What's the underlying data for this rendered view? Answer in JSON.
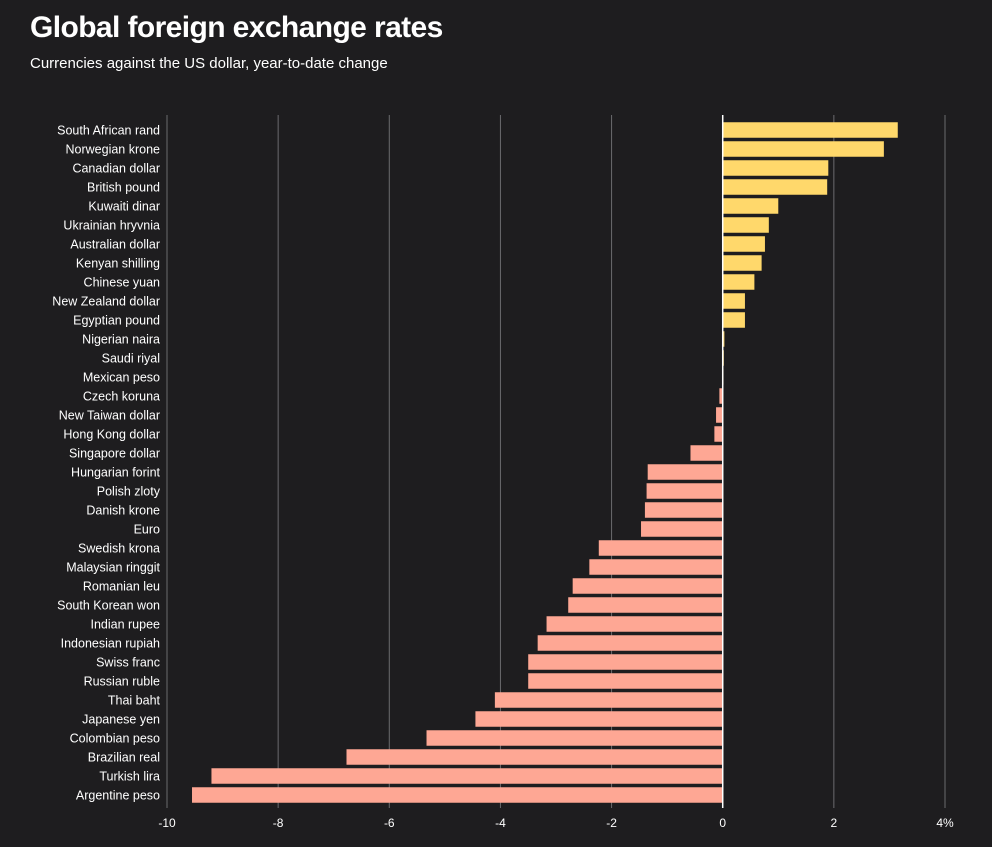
{
  "header": {
    "title": "Global foreign exchange rates",
    "subtitle": "Currencies against the US dollar, year-to-date change"
  },
  "colors": {
    "background": "#1e1d1f",
    "positive": "#ffd86b",
    "negative": "#fea794",
    "grid": "#6b6b6e",
    "zero_line": "#ffffff"
  },
  "chart_data": {
    "type": "bar",
    "orientation": "horizontal",
    "title": "Global foreign exchange rates",
    "subtitle": "Currencies against the US dollar, year-to-date change",
    "xlabel": "",
    "ylabel": "",
    "unit": "%",
    "xlim": [
      -10,
      4
    ],
    "xticks": [
      -10,
      -8,
      -6,
      -4,
      -2,
      0,
      2,
      4
    ],
    "xtick_labels": [
      "-10",
      "-8",
      "-6",
      "-4",
      "-2",
      "0",
      "2",
      "4%"
    ],
    "grid": true,
    "categories": [
      "South African rand",
      "Norwegian krone",
      "Canadian dollar",
      "British pound",
      "Kuwaiti dinar",
      "Ukrainian hryvnia",
      "Australian dollar",
      "Kenyan shilling",
      "Chinese yuan",
      "New Zealand dollar",
      "Egyptian pound",
      "Nigerian naira",
      "Saudi riyal",
      "Mexican peso",
      "Czech koruna",
      "New Taiwan dollar",
      "Hong Kong dollar",
      "Singapore dollar",
      "Hungarian forint",
      "Polish zloty",
      "Danish krone",
      "Euro",
      "Swedish krona",
      "Malaysian ringgit",
      "Romanian leu",
      "South Korean won",
      "Indian rupee",
      "Indonesian rupiah",
      "Swiss franc",
      "Russian ruble",
      "Thai baht",
      "Japanese yen",
      "Colombian peso",
      "Brazilian real",
      "Turkish lira",
      "Argentine peso"
    ],
    "values": [
      3.15,
      2.9,
      1.9,
      1.88,
      1.0,
      0.83,
      0.76,
      0.7,
      0.57,
      0.4,
      0.4,
      0.03,
      0.02,
      0.0,
      -0.06,
      -0.12,
      -0.15,
      -0.58,
      -1.35,
      -1.37,
      -1.4,
      -1.47,
      -2.23,
      -2.4,
      -2.7,
      -2.78,
      -3.17,
      -3.33,
      -3.5,
      -3.5,
      -4.1,
      -4.45,
      -5.33,
      -6.77,
      -9.2,
      -9.55
    ]
  }
}
